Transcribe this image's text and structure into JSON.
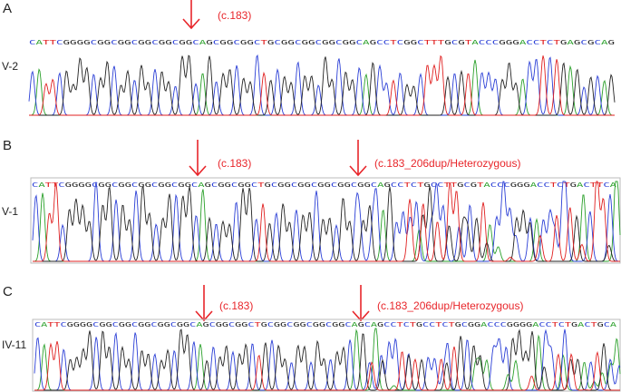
{
  "panels": [
    {
      "label": "A",
      "sample": "V-2",
      "annotations": [
        "(c.183)"
      ],
      "sequence": "CATTCGGGGCGGCGGCGGCGGCGGCAGCGGCGGCTGCGGCGGCGGCGGCAGCCTCGGCTTTGCGTACCCGGGACCTCTGAGCGCAG"
    },
    {
      "label": "B",
      "sample": "V-1",
      "annotations": [
        "(c.183)",
        "(c.183_206dup/Heterozygous)"
      ],
      "sequence": "CATTCGGGGCGGCGGCGGCGGCGGCAGCGGCGGCTGCGGCGGCGGCGGCGGCAGCCTCTGCCTTGCGTACCCGGGACCTCTGACTTCA"
    },
    {
      "label": "C",
      "sample": "IV-11",
      "annotations": [
        "(c.183)",
        "(c.183_206dup/Heterozygous)"
      ],
      "sequence": "CATTCGGGGCGGCGGCGGCGGCGGCAGCGGCGGCTGCGGCGGCGGCGGCAGCAGCCTCTGCCTCTGCGGACCCGGGGACCTCTGACTGCA"
    }
  ]
}
